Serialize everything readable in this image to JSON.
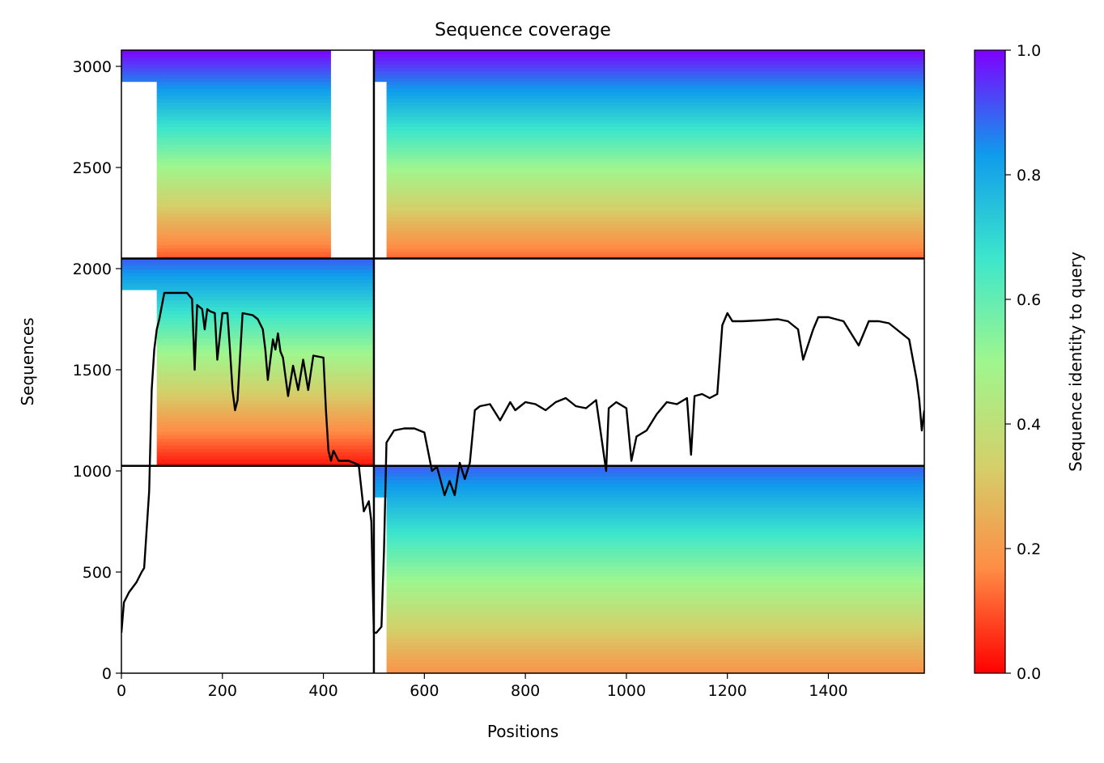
{
  "chart_data": {
    "type": "heatmap",
    "title": "Sequence coverage",
    "xlabel": "Positions",
    "ylabel": "Sequences",
    "xlim": [
      0,
      1590
    ],
    "ylim": [
      0,
      3080
    ],
    "xticks": [
      0,
      200,
      400,
      600,
      800,
      1000,
      1200,
      1400
    ],
    "yticks": [
      0,
      500,
      1000,
      1500,
      2000,
      2500,
      3000
    ],
    "grid": false,
    "legend": "none",
    "colormap": "rainbow_r",
    "colorbar": {
      "label": "Sequence identity to query",
      "range": [
        0,
        1
      ],
      "ticks": [
        "0.0",
        "0.2",
        "0.4",
        "0.6",
        "0.8",
        "1.0"
      ],
      "colors": [
        "#ff0000",
        "#ff8c45",
        "#d4d06a",
        "#9ff68e",
        "#3ce6cc",
        "#0f9bec",
        "#7f00ff"
      ]
    },
    "chain_boundaries": {
      "x": [
        500
      ],
      "y": [
        1025,
        2050
      ],
      "color": "#000000"
    },
    "blocks": [
      {
        "x": [
          0,
          500
        ],
        "y": [
          2050,
          3080
        ],
        "filled_x": [
          70,
          415
        ],
        "identity_top": 1.0,
        "identity_bottom": 0.1
      },
      {
        "x": [
          500,
          1590
        ],
        "y": [
          2050,
          3080
        ],
        "filled_x": [
          525,
          1590
        ],
        "identity_top": 1.0,
        "identity_bottom": 0.12
      },
      {
        "x": [
          0,
          500
        ],
        "y": [
          1025,
          2050
        ],
        "filled_x": [
          70,
          500
        ],
        "identity_top": 0.9,
        "identity_bottom": 0.02
      },
      {
        "x": [
          500,
          1590
        ],
        "y": [
          0,
          1025
        ],
        "filled_x": [
          525,
          1590
        ],
        "identity_top": 0.9,
        "identity_bottom": 0.18
      }
    ],
    "coverage": {
      "color": "#000000",
      "x": [
        0,
        5,
        15,
        30,
        40,
        45,
        55,
        60,
        65,
        70,
        75,
        85,
        100,
        130,
        140,
        145,
        150,
        160,
        165,
        170,
        175,
        185,
        190,
        200,
        210,
        215,
        220,
        225,
        230,
        240,
        260,
        270,
        280,
        285,
        290,
        300,
        305,
        310,
        315,
        320,
        330,
        340,
        350,
        360,
        370,
        380,
        400,
        405,
        410,
        415,
        420,
        430,
        450,
        470,
        480,
        490,
        495,
        499,
        500,
        505,
        515,
        520,
        525,
        540,
        560,
        580,
        600,
        615,
        625,
        640,
        650,
        660,
        670,
        680,
        690,
        700,
        710,
        730,
        750,
        770,
        780,
        790,
        800,
        820,
        840,
        860,
        880,
        900,
        920,
        940,
        960,
        965,
        980,
        1000,
        1010,
        1020,
        1040,
        1060,
        1080,
        1100,
        1120,
        1128,
        1135,
        1150,
        1165,
        1180,
        1190,
        1200,
        1210,
        1230,
        1270,
        1300,
        1320,
        1340,
        1350,
        1370,
        1380,
        1400,
        1430,
        1460,
        1480,
        1500,
        1520,
        1540,
        1560,
        1575,
        1580,
        1585,
        1590
      ],
      "y": [
        200,
        350,
        400,
        450,
        500,
        520,
        900,
        1400,
        1600,
        1700,
        1750,
        1880,
        1880,
        1880,
        1850,
        1500,
        1820,
        1800,
        1700,
        1800,
        1790,
        1780,
        1550,
        1780,
        1780,
        1600,
        1400,
        1300,
        1350,
        1780,
        1770,
        1750,
        1700,
        1600,
        1450,
        1650,
        1600,
        1680,
        1590,
        1560,
        1370,
        1520,
        1400,
        1550,
        1400,
        1570,
        1560,
        1300,
        1100,
        1050,
        1100,
        1050,
        1050,
        1030,
        800,
        850,
        750,
        300,
        200,
        200,
        230,
        600,
        1140,
        1200,
        1210,
        1210,
        1190,
        1000,
        1020,
        880,
        950,
        880,
        1040,
        960,
        1040,
        1300,
        1320,
        1330,
        1250,
        1340,
        1300,
        1320,
        1340,
        1330,
        1300,
        1340,
        1360,
        1320,
        1310,
        1350,
        1000,
        1310,
        1340,
        1310,
        1050,
        1170,
        1200,
        1280,
        1340,
        1330,
        1360,
        1080,
        1370,
        1380,
        1360,
        1380,
        1720,
        1780,
        1740,
        1740,
        1745,
        1750,
        1740,
        1700,
        1550,
        1700,
        1760,
        1760,
        1740,
        1620,
        1740,
        1740,
        1730,
        1690,
        1650,
        1450,
        1350,
        1200,
        1300
      ]
    }
  }
}
